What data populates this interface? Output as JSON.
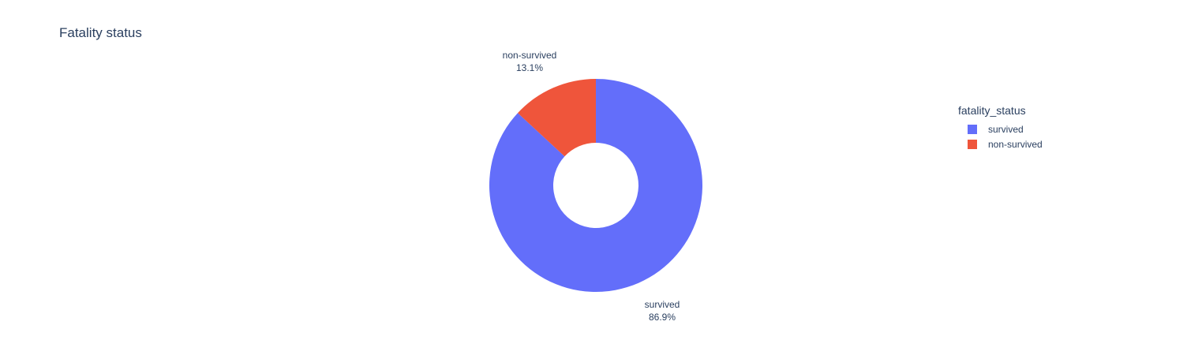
{
  "chart_data": {
    "type": "pie",
    "title": "Fatality status",
    "hole": true,
    "legend": {
      "title": "fatality_status",
      "position": "right"
    },
    "slices": [
      {
        "label": "survived",
        "value": 86.9,
        "display": "86.9%",
        "color": "#636efa"
      },
      {
        "label": "non-survived",
        "value": 13.1,
        "display": "13.1%",
        "color": "#ef553b"
      }
    ]
  }
}
